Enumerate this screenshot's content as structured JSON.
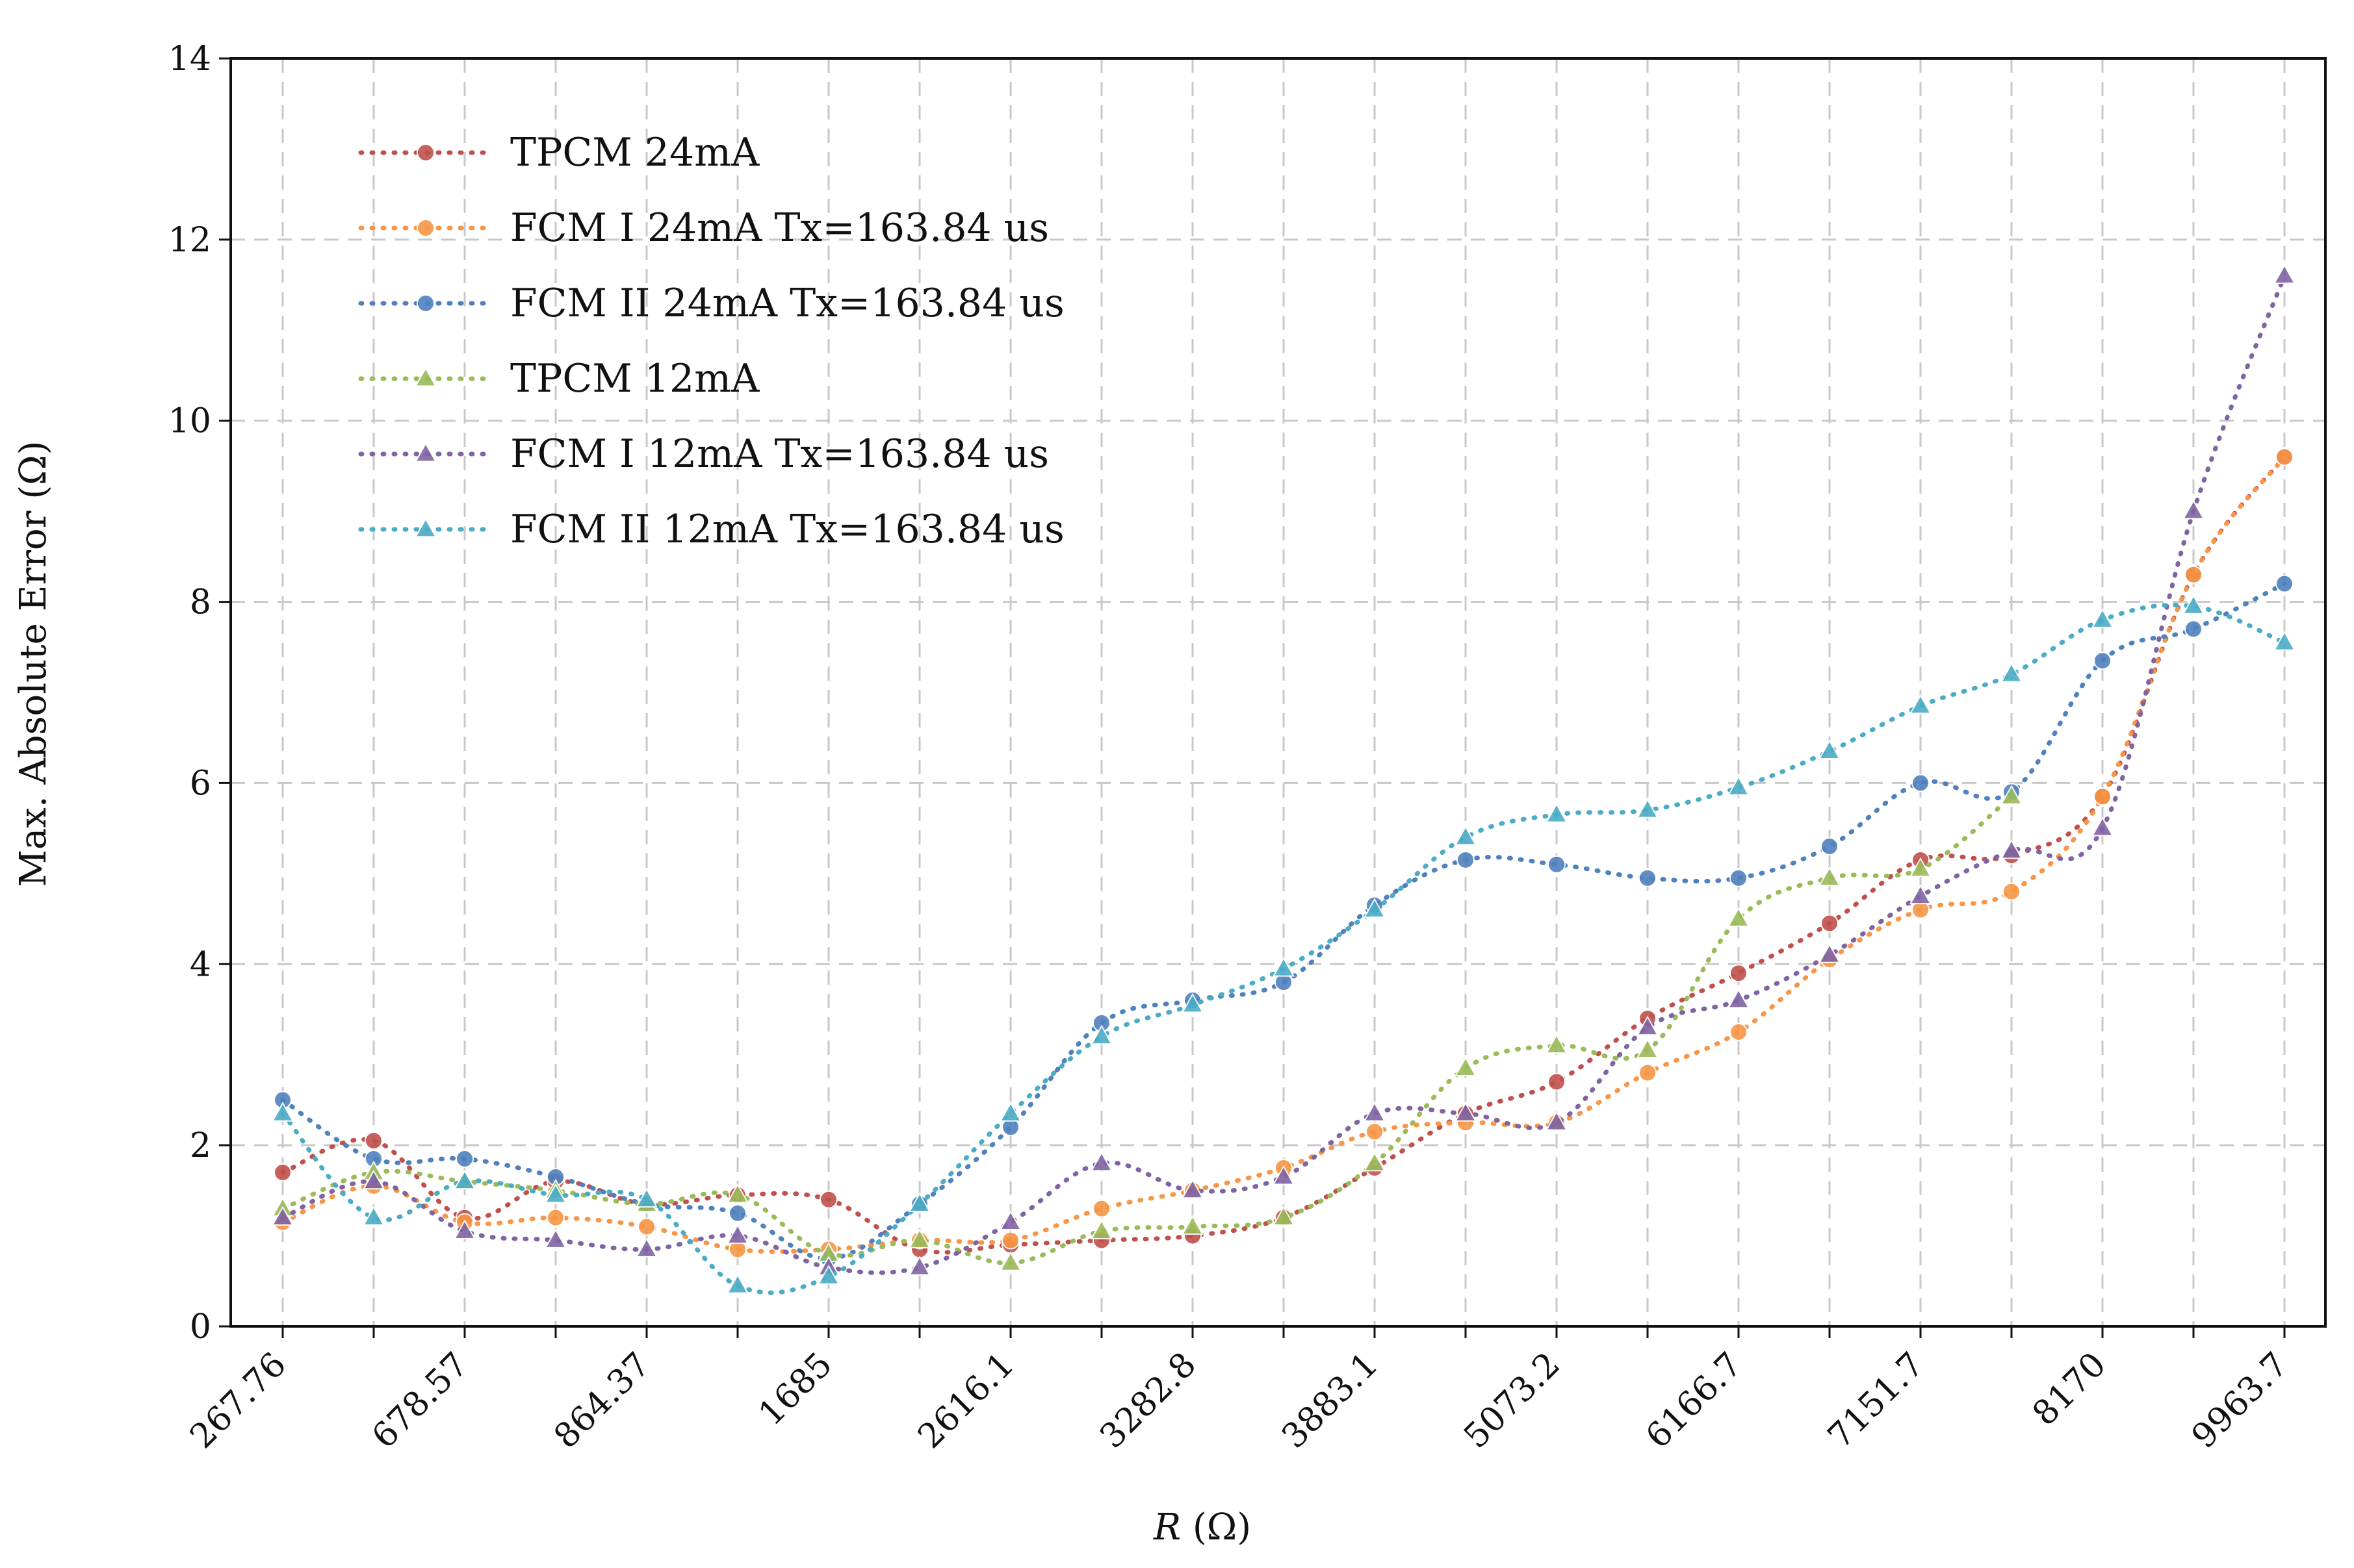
{
  "chart_data": {
    "type": "line",
    "title": "",
    "xlabel_italic": "R",
    "xlabel_unit": " (Ω)",
    "ylabel": "Max. Absolute Error (Ω)",
    "ylim": [
      0,
      14
    ],
    "yticks": [
      0,
      2,
      4,
      6,
      8,
      10,
      12,
      14
    ],
    "grid": true,
    "legend_position": "top-left",
    "categories": [
      "267.76",
      "",
      "678.57",
      "",
      "864.37",
      "",
      "1685",
      "",
      "2616.1",
      "",
      "3282.8",
      "",
      "3883.1",
      "",
      "5073.2",
      "",
      "6166.7",
      "",
      "7151.7",
      "",
      "8170",
      "",
      "9963.7"
    ],
    "series": [
      {
        "name": "TPCM 24mA",
        "color": "#c0504d",
        "marker": "circle",
        "values": [
          1.7,
          2.05,
          1.2,
          1.6,
          1.35,
          1.45,
          1.4,
          0.85,
          0.9,
          0.95,
          1.0,
          1.2,
          1.75,
          2.35,
          2.7,
          3.4,
          3.9,
          4.45,
          5.15,
          5.2,
          5.85,
          8.3,
          9.6
        ]
      },
      {
        "name": "FCM I 24mA Tx=163.84 us",
        "color": "#f79646",
        "marker": "circle",
        "values": [
          1.15,
          1.55,
          1.15,
          1.2,
          1.1,
          0.85,
          0.85,
          0.95,
          0.95,
          1.3,
          1.5,
          1.75,
          2.15,
          2.25,
          2.25,
          2.8,
          3.25,
          4.05,
          4.6,
          4.8,
          5.85,
          8.3,
          9.6
        ]
      },
      {
        "name": "FCM II 24mA  Tx=163.84 us",
        "color": "#4f81bd",
        "marker": "circle",
        "values": [
          2.5,
          1.85,
          1.85,
          1.65,
          1.35,
          1.25,
          0.75,
          1.35,
          2.2,
          3.35,
          3.6,
          3.8,
          4.65,
          5.15,
          5.1,
          4.95,
          4.95,
          5.3,
          6.0,
          5.9,
          7.35,
          7.7,
          8.2
        ]
      },
      {
        "name": "TPCM 12mA",
        "color": "#9bbb59",
        "marker": "triangle",
        "values": [
          1.3,
          1.7,
          1.6,
          1.5,
          1.35,
          1.45,
          0.8,
          0.95,
          0.7,
          1.05,
          1.1,
          1.2,
          1.8,
          2.85,
          3.1,
          3.05,
          4.5,
          4.95,
          5.05,
          5.85,
          null,
          null,
          null
        ]
      },
      {
        "name": "FCM I 12mA Tx=163.84 us",
        "color": "#8064a2",
        "marker": "triangle",
        "values": [
          1.2,
          1.6,
          1.05,
          0.95,
          0.85,
          1.0,
          0.65,
          0.65,
          1.15,
          1.8,
          1.5,
          1.65,
          2.35,
          2.35,
          2.25,
          3.3,
          3.6,
          4.1,
          4.75,
          5.25,
          5.5,
          9.0,
          11.6
        ]
      },
      {
        "name": "FCM II 12mA  Tx=163.84 us",
        "color": "#4bacc6",
        "marker": "triangle",
        "values": [
          2.35,
          1.2,
          1.6,
          1.45,
          1.4,
          0.45,
          0.55,
          1.35,
          2.35,
          3.2,
          3.55,
          3.95,
          4.6,
          5.4,
          5.65,
          5.7,
          5.95,
          6.35,
          6.85,
          7.2,
          7.8,
          7.95,
          7.55
        ]
      }
    ]
  }
}
